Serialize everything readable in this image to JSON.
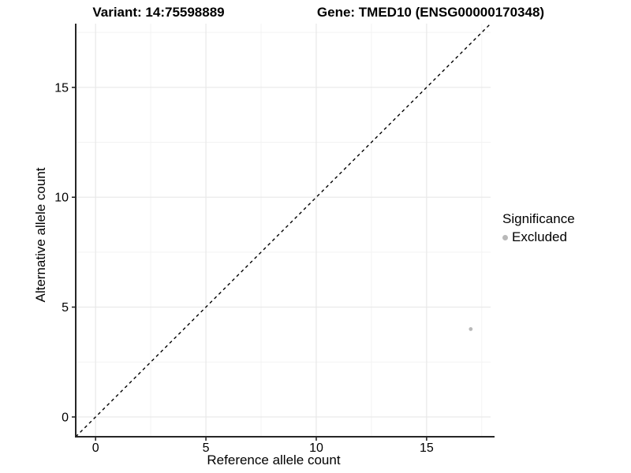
{
  "chart_data": {
    "type": "scatter",
    "title_left": "Variant: 14:75598889",
    "title_right": "Gene: TMED10 (ENSG00000170348)",
    "xlabel": "Reference allele count",
    "ylabel": "Alternative allele count",
    "xlim": [
      -0.9,
      17.9
    ],
    "ylim": [
      -0.9,
      17.9
    ],
    "x_ticks": [
      0,
      5,
      10,
      15
    ],
    "y_ticks": [
      0,
      5,
      10,
      15
    ],
    "x_minor_ticks": [
      2.5,
      7.5,
      12.5,
      17.5
    ],
    "y_minor_ticks": [
      2.5,
      7.5,
      12.5,
      17.5
    ],
    "grid": "major and minor gridlines on white background",
    "identity_line": {
      "style": "dashed",
      "description": "y = x diagonal"
    },
    "series": [
      {
        "name": "Excluded",
        "color": "#b9b9b9",
        "points": [
          {
            "x": 17,
            "y": 4
          }
        ]
      }
    ],
    "legend": {
      "title": "Significance",
      "position": "right",
      "items": [
        {
          "label": "Excluded",
          "color": "#b9b9b9"
        }
      ]
    },
    "colors": {
      "background": "#ffffff",
      "grid_major": "#e8e8e8",
      "grid_minor": "#f3f3f3",
      "axis_line": "#262626",
      "tick_mark": "#262626",
      "text": "#000000",
      "identity_line": "#000000"
    }
  }
}
